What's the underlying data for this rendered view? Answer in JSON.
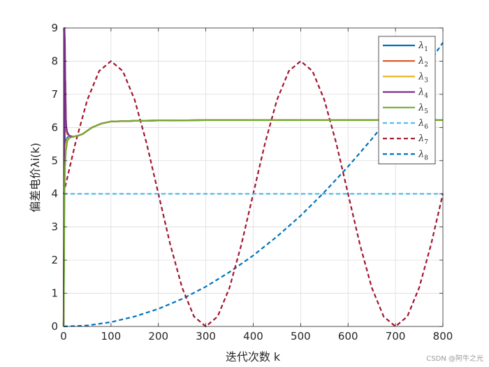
{
  "chart_data": {
    "type": "line",
    "xlabel": "迭代次数 k",
    "ylabel": "偏差电价λi(k)",
    "xlim": [
      0,
      800
    ],
    "ylim": [
      0,
      9
    ],
    "xticks": [
      0,
      100,
      200,
      300,
      400,
      500,
      600,
      700,
      800
    ],
    "yticks": [
      0,
      1,
      2,
      3,
      4,
      5,
      6,
      7,
      8,
      9
    ],
    "grid": true,
    "legend_position": "top-right",
    "series": [
      {
        "name": "λ1",
        "color": "#0072BD",
        "style": "solid",
        "x": [
          0,
          1,
          2,
          3,
          5,
          8,
          12,
          20,
          30,
          40,
          50,
          60,
          80,
          100,
          150,
          200,
          300,
          400,
          500,
          600,
          700,
          800
        ],
        "y": [
          0,
          2.0,
          6.5,
          5.4,
          5.6,
          5.7,
          5.72,
          5.72,
          5.75,
          5.8,
          5.9,
          6.0,
          6.12,
          6.18,
          6.2,
          6.21,
          6.22,
          6.22,
          6.22,
          6.22,
          6.22,
          6.22
        ]
      },
      {
        "name": "λ2",
        "color": "#D95319",
        "style": "solid",
        "x": [
          0,
          1,
          2,
          3,
          4,
          5,
          6,
          8,
          12,
          20,
          30,
          40,
          50,
          60,
          80,
          100,
          150,
          200,
          300,
          400,
          500,
          600,
          700,
          800
        ],
        "y": [
          0,
          3.0,
          8.8,
          6.5,
          7.4,
          6.2,
          5.9,
          5.8,
          5.75,
          5.72,
          5.75,
          5.8,
          5.9,
          6.0,
          6.12,
          6.18,
          6.2,
          6.21,
          6.22,
          6.22,
          6.22,
          6.22,
          6.22,
          6.22
        ]
      },
      {
        "name": "λ3",
        "color": "#EDB120",
        "style": "solid",
        "x": [
          0,
          1,
          2,
          3,
          5,
          8,
          12,
          20,
          30,
          40,
          50,
          60,
          80,
          100,
          150,
          200,
          300,
          400,
          500,
          600,
          700,
          800
        ],
        "y": [
          0,
          2.5,
          5.0,
          5.3,
          5.5,
          5.65,
          5.7,
          5.72,
          5.75,
          5.8,
          5.9,
          6.0,
          6.12,
          6.18,
          6.2,
          6.21,
          6.22,
          6.22,
          6.22,
          6.22,
          6.22,
          6.22
        ]
      },
      {
        "name": "λ4",
        "color": "#7E2F8E",
        "style": "solid",
        "x": [
          0,
          1,
          2,
          3,
          4,
          5,
          6,
          8,
          12,
          20,
          30,
          40,
          50,
          60,
          80,
          100,
          150,
          200,
          300,
          400,
          500,
          600,
          700,
          800
        ],
        "y": [
          0,
          4.0,
          9.0,
          8.5,
          7.0,
          6.3,
          6.0,
          5.85,
          5.75,
          5.72,
          5.75,
          5.8,
          5.9,
          6.0,
          6.12,
          6.18,
          6.2,
          6.21,
          6.22,
          6.22,
          6.22,
          6.22,
          6.22,
          6.22
        ]
      },
      {
        "name": "λ5",
        "color": "#77AC30",
        "style": "solid",
        "x": [
          0,
          1,
          2,
          3,
          5,
          8,
          12,
          20,
          30,
          40,
          50,
          60,
          80,
          100,
          150,
          200,
          300,
          400,
          500,
          600,
          700,
          800
        ],
        "y": [
          0,
          1.5,
          4.0,
          4.8,
          5.3,
          5.6,
          5.68,
          5.72,
          5.75,
          5.8,
          5.9,
          6.0,
          6.12,
          6.18,
          6.2,
          6.21,
          6.22,
          6.22,
          6.22,
          6.22,
          6.22,
          6.22
        ]
      },
      {
        "name": "λ6",
        "color": "#4DBEEE",
        "style": "dashed",
        "x": [
          0,
          800
        ],
        "y": [
          4,
          4
        ]
      },
      {
        "name": "λ7",
        "color": "#A2142F",
        "style": "dashed",
        "x": [
          0,
          25,
          50,
          75,
          100,
          125,
          150,
          175,
          200,
          225,
          250,
          275,
          300,
          325,
          350,
          375,
          400,
          425,
          450,
          475,
          500,
          525,
          550,
          575,
          600,
          625,
          650,
          675,
          700,
          725,
          750,
          775,
          800
        ],
        "y": [
          4.0,
          5.53,
          6.83,
          7.7,
          8.0,
          7.7,
          6.83,
          5.53,
          4.0,
          2.47,
          1.17,
          0.3,
          0.0,
          0.3,
          1.17,
          2.47,
          4.0,
          5.53,
          6.83,
          7.7,
          8.0,
          7.7,
          6.83,
          5.53,
          4.0,
          2.47,
          1.17,
          0.3,
          0.0,
          0.3,
          1.17,
          2.47,
          4.0
        ]
      },
      {
        "name": "λ8",
        "color": "#0072BD",
        "style": "dashed",
        "x": [
          0,
          50,
          100,
          150,
          200,
          250,
          300,
          350,
          400,
          450,
          500,
          550,
          600,
          650,
          700,
          750,
          800
        ],
        "y": [
          0.0,
          0.03,
          0.13,
          0.3,
          0.53,
          0.83,
          1.2,
          1.64,
          2.14,
          2.71,
          3.34,
          4.05,
          4.82,
          5.65,
          6.55,
          7.52,
          8.56
        ]
      }
    ]
  },
  "watermark": "CSDN @阿牛之光"
}
